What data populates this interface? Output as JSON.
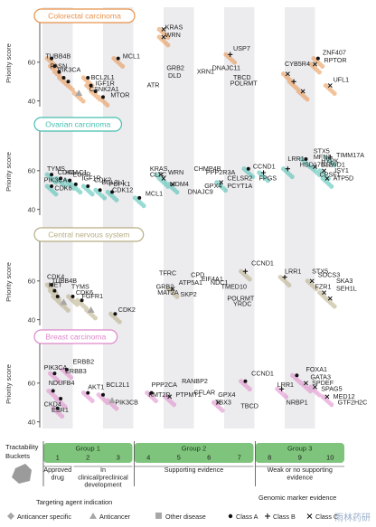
{
  "chart_data": {
    "type": "scatter",
    "ylabel": "Priority score",
    "yticks": [
      40,
      60
    ],
    "ylim": [
      38,
      80
    ],
    "xlim": [
      0,
      10
    ],
    "buckets": [
      "1",
      "2",
      "3",
      "4",
      "5",
      "6",
      "7",
      "8",
      "9",
      "10"
    ],
    "xlabel": "Tractability Buckets",
    "groups": [
      {
        "name": "Group 1",
        "range": [
          1,
          3
        ]
      },
      {
        "name": "Group 2",
        "range": [
          4,
          7
        ]
      },
      {
        "name": "Group 3",
        "range": [
          8,
          10
        ]
      }
    ],
    "evidence": [
      {
        "label": "Approved drug",
        "range": [
          1,
          1
        ]
      },
      {
        "label": "In clinical/preclinical development",
        "range": [
          2,
          3
        ]
      },
      {
        "label": "Supporting evidence",
        "range": [
          4,
          7
        ]
      },
      {
        "label": "Weak or no supporting evidence",
        "range": [
          8,
          10
        ]
      }
    ],
    "panels": [
      {
        "name": "Colorectal carcinoma",
        "color": "#e8924a",
        "labels": [
          {
            "text": "KRAS",
            "x": 4.05,
            "y": 77
          },
          {
            "text": "WRN",
            "x": 4.05,
            "y": 73
          },
          {
            "text": "USP7",
            "x": 6.3,
            "y": 66
          },
          {
            "text": "ZNF407",
            "x": 9.25,
            "y": 64
          },
          {
            "text": "TUBB4B",
            "x": 0.1,
            "y": 62
          },
          {
            "text": "MCL1",
            "x": 2.65,
            "y": 62
          },
          {
            "text": "RPTOR",
            "x": 9.3,
            "y": 60
          },
          {
            "text": "CYB5R4",
            "x": 8.0,
            "y": 58
          },
          {
            "text": "FASN",
            "x": 0.25,
            "y": 57
          },
          {
            "text": "GRB2",
            "x": 4.1,
            "y": 56
          },
          {
            "text": "DLD",
            "x": 4.15,
            "y": 52
          },
          {
            "text": "XRN1",
            "x": 5.1,
            "y": 54
          },
          {
            "text": "DNAJC11",
            "x": 5.6,
            "y": 56
          },
          {
            "text": "TBCD",
            "x": 6.3,
            "y": 51
          },
          {
            "text": "POLRMT",
            "x": 6.2,
            "y": 48
          },
          {
            "text": "UFL1",
            "x": 9.6,
            "y": 50
          },
          {
            "text": "PIK3CA",
            "x": 0.5,
            "y": 55
          },
          {
            "text": "BCL2L1",
            "x": 1.6,
            "y": 51
          },
          {
            "text": "IGF1R",
            "x": 1.75,
            "y": 48
          },
          {
            "text": "CSNK2A1",
            "x": 1.55,
            "y": 45
          },
          {
            "text": "MTOR",
            "x": 2.25,
            "y": 42
          },
          {
            "text": "ATR",
            "x": 3.45,
            "y": 47
          }
        ],
        "points": [
          {
            "x": 0.3,
            "y": 62,
            "m": "dot"
          },
          {
            "x": 0.4,
            "y": 58,
            "m": "dot"
          },
          {
            "x": 0.55,
            "y": 55,
            "m": "dot"
          },
          {
            "x": 0.7,
            "y": 52,
            "m": "dot"
          },
          {
            "x": 0.85,
            "y": 50,
            "m": "dot"
          },
          {
            "x": 1.2,
            "y": 44,
            "m": "triangle"
          },
          {
            "x": 1.5,
            "y": 52,
            "m": "dot"
          },
          {
            "x": 1.6,
            "y": 48,
            "m": "dot"
          },
          {
            "x": 1.75,
            "y": 45,
            "m": "dot"
          },
          {
            "x": 2.0,
            "y": 42,
            "m": "dot"
          },
          {
            "x": 2.5,
            "y": 62,
            "m": "dot"
          },
          {
            "x": 4.0,
            "y": 77,
            "m": "x"
          },
          {
            "x": 4.0,
            "y": 73,
            "m": "x"
          },
          {
            "x": 6.2,
            "y": 64,
            "m": "plus"
          },
          {
            "x": 9.1,
            "y": 62,
            "m": "dot"
          },
          {
            "x": 9.0,
            "y": 59,
            "m": "x"
          },
          {
            "x": 8.1,
            "y": 54,
            "m": "x"
          },
          {
            "x": 8.3,
            "y": 50,
            "m": "plus"
          },
          {
            "x": 8.6,
            "y": 45,
            "m": "x"
          },
          {
            "x": 9.5,
            "y": 48,
            "m": "x"
          }
        ]
      },
      {
        "name": "Ovarian carcinoma",
        "color": "#45bfb0",
        "labels": [
          {
            "text": "TIMM17A",
            "x": 9.7,
            "y": 67
          },
          {
            "text": "TYMS",
            "x": 0.15,
            "y": 60
          },
          {
            "text": "CDK4",
            "x": 0.5,
            "y": 58
          },
          {
            "text": "HDAC1",
            "x": 0.75,
            "y": 58
          },
          {
            "text": "EGFR",
            "x": 1.0,
            "y": 57
          },
          {
            "text": "KRAS",
            "x": 3.55,
            "y": 60
          },
          {
            "text": "CLTC",
            "x": 3.55,
            "y": 57
          },
          {
            "text": "WRN",
            "x": 4.15,
            "y": 58
          },
          {
            "text": "MDM4",
            "x": 4.2,
            "y": 52
          },
          {
            "text": "CHMP4B",
            "x": 5.0,
            "y": 60
          },
          {
            "text": "PPP2R3A",
            "x": 5.4,
            "y": 58
          },
          {
            "text": "DNAJC9",
            "x": 4.8,
            "y": 48
          },
          {
            "text": "GPX4",
            "x": 5.35,
            "y": 51
          },
          {
            "text": "CELSR2",
            "x": 6.1,
            "y": 55
          },
          {
            "text": "PCYT1A",
            "x": 6.1,
            "y": 51
          },
          {
            "text": "CCND1",
            "x": 6.95,
            "y": 61
          },
          {
            "text": "FPGS",
            "x": 7.15,
            "y": 55
          },
          {
            "text": "LRR1",
            "x": 8.1,
            "y": 65
          },
          {
            "text": "HSD17B12",
            "x": 8.5,
            "y": 62
          },
          {
            "text": "STX5",
            "x": 8.95,
            "y": 69
          },
          {
            "text": "MFN2",
            "x": 8.95,
            "y": 66
          },
          {
            "text": "HYPK",
            "x": 9.2,
            "y": 64
          },
          {
            "text": "GRWD1",
            "x": 9.2,
            "y": 62
          },
          {
            "text": "ISY1",
            "x": 9.65,
            "y": 59
          },
          {
            "text": "CPSF1",
            "x": 9.15,
            "y": 57
          },
          {
            "text": "ATP5D",
            "x": 9.6,
            "y": 55
          },
          {
            "text": "PIK3CA",
            "x": 0.05,
            "y": 54
          },
          {
            "text": "IGF1R",
            "x": 1.3,
            "y": 55
          },
          {
            "text": "CDK2",
            "x": 1.7,
            "y": 54
          },
          {
            "text": "CDK6",
            "x": 0.4,
            "y": 50
          },
          {
            "text": "BCL2L1",
            "x": 1.95,
            "y": 53
          },
          {
            "text": "PDPK1",
            "x": 2.2,
            "y": 52
          },
          {
            "text": "CDK12",
            "x": 2.3,
            "y": 49
          },
          {
            "text": "MCL1",
            "x": 3.4,
            "y": 47
          }
        ],
        "points": [
          {
            "x": 0.3,
            "y": 58,
            "m": "dot"
          },
          {
            "x": 0.6,
            "y": 56,
            "m": "dot"
          },
          {
            "x": 0.9,
            "y": 55,
            "m": "dot"
          },
          {
            "x": 1.1,
            "y": 53,
            "m": "dot"
          },
          {
            "x": 0.3,
            "y": 52,
            "m": "dot"
          },
          {
            "x": 1.5,
            "y": 52,
            "m": "dot"
          },
          {
            "x": 1.9,
            "y": 50,
            "m": "dot"
          },
          {
            "x": 2.3,
            "y": 49,
            "m": "dot"
          },
          {
            "x": 3.2,
            "y": 46,
            "m": "dot"
          },
          {
            "x": 3.9,
            "y": 58,
            "m": "x"
          },
          {
            "x": 4.0,
            "y": 56,
            "m": "x"
          },
          {
            "x": 4.3,
            "y": 53,
            "m": "x"
          },
          {
            "x": 5.9,
            "y": 54,
            "m": "x"
          },
          {
            "x": 6.8,
            "y": 61,
            "m": "dot"
          },
          {
            "x": 7.3,
            "y": 59,
            "m": "plus"
          },
          {
            "x": 8.1,
            "y": 61,
            "m": "plus"
          },
          {
            "x": 8.7,
            "y": 66,
            "m": "dot"
          },
          {
            "x": 9.0,
            "y": 62,
            "m": "x"
          },
          {
            "x": 9.3,
            "y": 60,
            "m": "x"
          },
          {
            "x": 9.5,
            "y": 67,
            "m": "plus"
          },
          {
            "x": 9.4,
            "y": 56,
            "m": "x"
          }
        ]
      },
      {
        "name": "Central nervous system",
        "color": "#b7ad83",
        "labels": [
          {
            "text": "CCND1",
            "x": 6.9,
            "y": 68
          },
          {
            "text": "TFRC",
            "x": 3.85,
            "y": 63
          },
          {
            "text": "CPD",
            "x": 4.9,
            "y": 62
          },
          {
            "text": "EIF4A1",
            "x": 5.25,
            "y": 60
          },
          {
            "text": "NDC1",
            "x": 5.55,
            "y": 58
          },
          {
            "text": "TMED10",
            "x": 5.9,
            "y": 56
          },
          {
            "text": "ATP5A1",
            "x": 4.5,
            "y": 58
          },
          {
            "text": "GRB2",
            "x": 3.75,
            "y": 56
          },
          {
            "text": "MAT2A",
            "x": 3.8,
            "y": 53
          },
          {
            "text": "SKP2",
            "x": 4.55,
            "y": 52
          },
          {
            "text": "POLRMT",
            "x": 6.1,
            "y": 50
          },
          {
            "text": "YRDC",
            "x": 6.3,
            "y": 47
          },
          {
            "text": "LRR1",
            "x": 8.0,
            "y": 64
          },
          {
            "text": "STX5",
            "x": 8.9,
            "y": 64
          },
          {
            "text": "SOCS3",
            "x": 9.1,
            "y": 62
          },
          {
            "text": "SKA3",
            "x": 9.7,
            "y": 59
          },
          {
            "text": "FZR1",
            "x": 9.0,
            "y": 56
          },
          {
            "text": "SEH1L",
            "x": 9.7,
            "y": 55
          },
          {
            "text": "CDK4",
            "x": 0.15,
            "y": 61
          },
          {
            "text": "TUBB4B",
            "x": 0.3,
            "y": 59
          },
          {
            "text": "MET",
            "x": 0.2,
            "y": 57
          },
          {
            "text": "TYMS",
            "x": 0.95,
            "y": 56
          },
          {
            "text": "CDK6",
            "x": 1.1,
            "y": 53
          },
          {
            "text": "FGFR1",
            "x": 1.3,
            "y": 51
          },
          {
            "text": "CDK2",
            "x": 2.5,
            "y": 44
          }
        ],
        "points": [
          {
            "x": 0.3,
            "y": 58,
            "m": "dot"
          },
          {
            "x": 0.4,
            "y": 55,
            "m": "dot"
          },
          {
            "x": 0.5,
            "y": 52,
            "m": "dot"
          },
          {
            "x": 0.7,
            "y": 49,
            "m": "triangle"
          },
          {
            "x": 1.0,
            "y": 52,
            "m": "dot"
          },
          {
            "x": 1.3,
            "y": 50,
            "m": "dot"
          },
          {
            "x": 1.6,
            "y": 45,
            "m": "triangle"
          },
          {
            "x": 2.4,
            "y": 43,
            "m": "dot"
          },
          {
            "x": 4.3,
            "y": 56,
            "m": "x"
          },
          {
            "x": 6.7,
            "y": 65,
            "m": "plus"
          },
          {
            "x": 8.0,
            "y": 62,
            "m": "plus"
          },
          {
            "x": 8.9,
            "y": 60,
            "m": "x"
          },
          {
            "x": 9.3,
            "y": 54,
            "m": "x"
          },
          {
            "x": 9.5,
            "y": 51,
            "m": "x"
          }
        ]
      },
      {
        "name": "Breast carcinoma",
        "color": "#de88c9",
        "labels": [
          {
            "text": "ERBB2",
            "x": 1.0,
            "y": 70
          },
          {
            "text": "PIK3CA",
            "x": 0.05,
            "y": 67
          },
          {
            "text": "ERBB3",
            "x": 0.75,
            "y": 65
          },
          {
            "text": "CCND1",
            "x": 6.9,
            "y": 64
          },
          {
            "text": "FOXA1",
            "x": 8.7,
            "y": 66
          },
          {
            "text": "GATA3",
            "x": 8.85,
            "y": 62
          },
          {
            "text": "NDUFB4",
            "x": 0.2,
            "y": 59
          },
          {
            "text": "AKT1",
            "x": 1.5,
            "y": 57
          },
          {
            "text": "BCL2L1",
            "x": 2.1,
            "y": 58
          },
          {
            "text": "PPP2CA",
            "x": 3.6,
            "y": 58
          },
          {
            "text": "RANBP2",
            "x": 4.6,
            "y": 60
          },
          {
            "text": "KMT2D",
            "x": 3.5,
            "y": 53
          },
          {
            "text": "PTPMT1",
            "x": 4.4,
            "y": 53
          },
          {
            "text": "CFLAR",
            "x": 5.0,
            "y": 54
          },
          {
            "text": "GPX4",
            "x": 5.8,
            "y": 53
          },
          {
            "text": "TBX3",
            "x": 5.7,
            "y": 49
          },
          {
            "text": "TBCD",
            "x": 6.55,
            "y": 47
          },
          {
            "text": "LRR1",
            "x": 7.75,
            "y": 58
          },
          {
            "text": "SPDEF",
            "x": 8.9,
            "y": 59
          },
          {
            "text": "SPAG5",
            "x": 9.2,
            "y": 56
          },
          {
            "text": "MED12",
            "x": 9.6,
            "y": 52
          },
          {
            "text": "NRBP1",
            "x": 8.05,
            "y": 49
          },
          {
            "text": "GTF2H2C",
            "x": 9.75,
            "y": 49
          },
          {
            "text": "CKD4",
            "x": 0.05,
            "y": 48
          },
          {
            "text": "ESR1",
            "x": 0.3,
            "y": 45
          },
          {
            "text": "PIK3CB",
            "x": 2.4,
            "y": 49
          }
        ],
        "points": [
          {
            "x": 0.4,
            "y": 65,
            "m": "dot"
          },
          {
            "x": 0.8,
            "y": 67,
            "m": "dot"
          },
          {
            "x": 0.35,
            "y": 56,
            "m": "dot"
          },
          {
            "x": 0.6,
            "y": 52,
            "m": "dot"
          },
          {
            "x": 0.5,
            "y": 47,
            "m": "dot"
          },
          {
            "x": 1.5,
            "y": 55,
            "m": "dot"
          },
          {
            "x": 2.0,
            "y": 54,
            "m": "dot"
          },
          {
            "x": 2.3,
            "y": 51,
            "m": "triangle"
          },
          {
            "x": 3.6,
            "y": 55,
            "m": "dot"
          },
          {
            "x": 4.2,
            "y": 53,
            "m": "x"
          },
          {
            "x": 5.8,
            "y": 50,
            "m": "x"
          },
          {
            "x": 6.7,
            "y": 61,
            "m": "dot"
          },
          {
            "x": 7.9,
            "y": 57,
            "m": "plus"
          },
          {
            "x": 8.4,
            "y": 64,
            "m": "dot"
          },
          {
            "x": 8.7,
            "y": 60,
            "m": "x"
          },
          {
            "x": 9.0,
            "y": 58,
            "m": "x"
          },
          {
            "x": 9.4,
            "y": 53,
            "m": "x"
          }
        ]
      }
    ],
    "legend": {
      "targeting_title": "Targeting agent indication",
      "targeting": [
        {
          "label": "Anticancer specific",
          "shape": "diamond"
        },
        {
          "label": "Anticancer",
          "shape": "triangle"
        },
        {
          "label": "Other disease",
          "shape": "square"
        }
      ],
      "marker_title": "Genomic marker evidence",
      "marker": [
        {
          "label": "Class A",
          "shape": "dot"
        },
        {
          "label": "Class B",
          "shape": "plus"
        },
        {
          "label": "Class C",
          "shape": "x"
        }
      ]
    }
  },
  "watermark": "雨林药研"
}
